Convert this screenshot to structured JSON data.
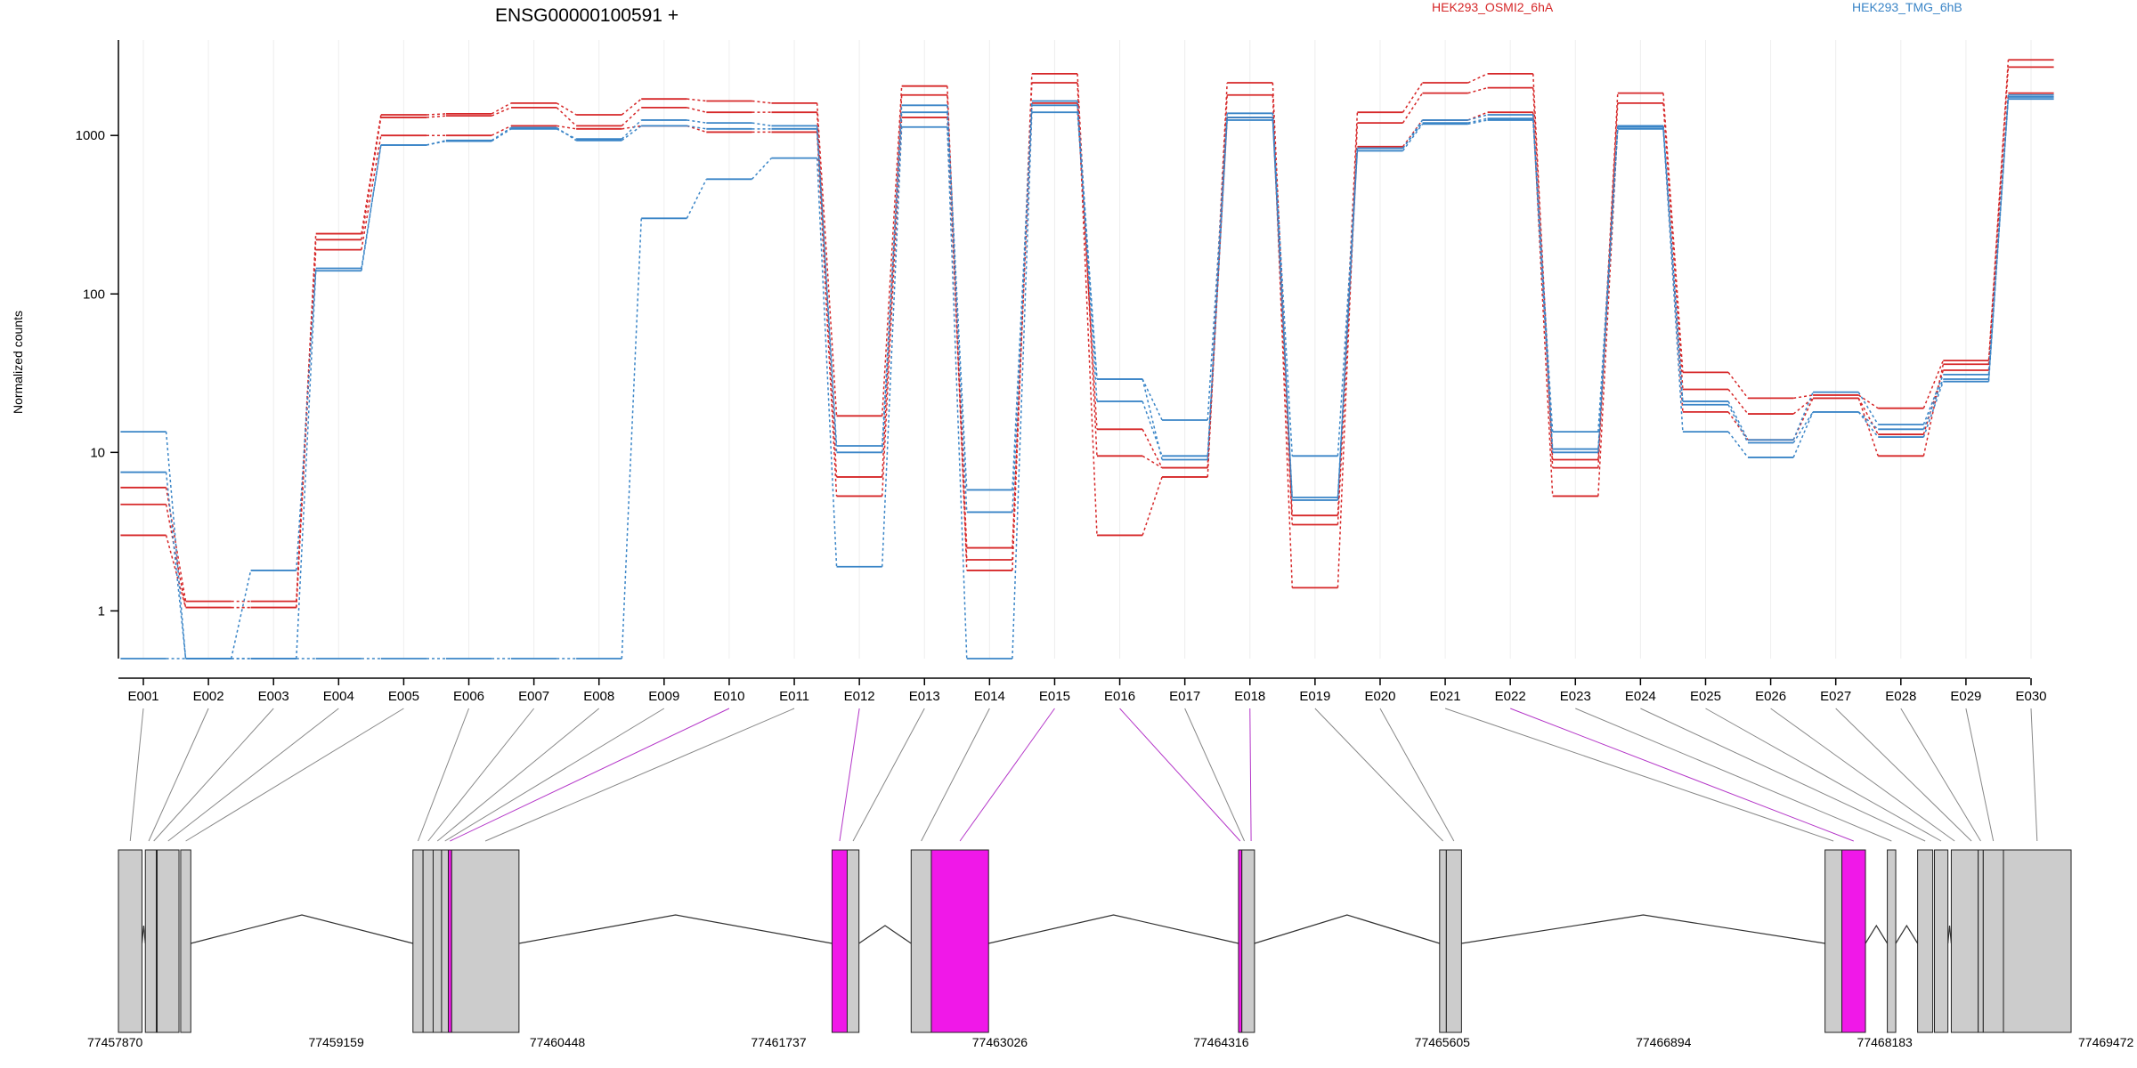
{
  "chart_data": {
    "type": "line",
    "title": "ENSG00000100591 +",
    "ylabel": "Normalized counts",
    "y_scale": "log",
    "ylim": [
      0.5,
      4000
    ],
    "y_ticks": [
      1,
      10,
      100,
      1000
    ],
    "y_tick_labels": [
      "1",
      "10",
      "100",
      "1000"
    ],
    "grid": "vertical, light",
    "categories": [
      "E001",
      "E002",
      "E003",
      "E004",
      "E005",
      "E006",
      "E007",
      "E008",
      "E009",
      "E010",
      "E011",
      "E012",
      "E013",
      "E014",
      "E015",
      "E016",
      "E017",
      "E018",
      "E019",
      "E020",
      "E021",
      "E022",
      "E023",
      "E024",
      "E025",
      "E026",
      "E027",
      "E028",
      "E029",
      "E030"
    ],
    "legend": [
      {
        "name": "HEK293_OSMI2_6hA",
        "color": "#d62728"
      },
      {
        "name": "HEK293_TMG_6hB",
        "color": "#3a85c7"
      }
    ],
    "series": [
      {
        "group": "HEK293_OSMI2_6hA",
        "color": "#d62728",
        "values": [
          6.0,
          1.15,
          1.15,
          240,
          1350,
          1370,
          1600,
          1350,
          1700,
          1650,
          1600,
          17,
          2050,
          2.1,
          2450,
          9.5,
          8,
          2150,
          4,
          1400,
          2150,
          2450,
          9,
          1850,
          32,
          22,
          23,
          19,
          38,
          3000
        ]
      },
      {
        "group": "HEK293_OSMI2_6hA",
        "color": "#d62728",
        "values": [
          4.7,
          1.05,
          1.05,
          220,
          1300,
          1330,
          1500,
          1150,
          1500,
          1400,
          1400,
          7,
          1800,
          1.8,
          2150,
          3,
          7,
          1800,
          1.4,
          1200,
          1850,
          2000,
          8,
          1600,
          25,
          17.5,
          22,
          9.5,
          36,
          2700
        ]
      },
      {
        "group": "HEK293_OSMI2_6hA",
        "color": "#d62728",
        "values": [
          3.0,
          1.05,
          1.05,
          190,
          1000,
          1000,
          1150,
          1100,
          1150,
          1050,
          1050,
          5.3,
          1300,
          2.5,
          1600,
          14,
          8,
          1300,
          3.5,
          850,
          1250,
          1400,
          5.3,
          1150,
          18,
          12,
          22,
          13,
          33,
          1850
        ]
      },
      {
        "group": "HEK293_TMG_6hB",
        "color": "#3a85c7",
        "values": [
          13.5,
          0.5,
          1.8,
          145,
          870,
          920,
          1100,
          950,
          1250,
          1200,
          1150,
          11,
          1550,
          5.8,
          1650,
          29,
          16,
          1380,
          9.5,
          830,
          1250,
          1350,
          13.5,
          1150,
          21,
          12,
          24,
          15,
          31,
          1800
        ]
      },
      {
        "group": "HEK293_TMG_6hB",
        "color": "#3a85c7",
        "values": [
          7.5,
          0.5,
          0.5,
          140,
          870,
          930,
          1120,
          930,
          1150,
          1100,
          1100,
          10,
          1400,
          4.2,
          1550,
          21,
          9.5,
          1300,
          5.2,
          830,
          1200,
          1280,
          10.5,
          1130,
          20,
          11.5,
          18,
          14,
          29,
          1750
        ]
      },
      {
        "group": "HEK293_TMG_6hB",
        "color": "#3a85c7",
        "values": [
          0.5,
          0.5,
          0.5,
          0.5,
          0.5,
          0.5,
          0.5,
          0.5,
          300,
          530,
          720,
          1.9,
          1130,
          0.5,
          1400,
          29,
          9,
          1250,
          5,
          800,
          1180,
          1250,
          10,
          1100,
          13.5,
          9.3,
          18,
          12.5,
          28,
          1700
        ]
      }
    ],
    "gene_model": {
      "coordinate_ticks": [
        "77457870",
        "77459159",
        "77460448",
        "77461737",
        "77463026",
        "77464316",
        "77465605",
        "77466894",
        "77468183",
        "77469472"
      ],
      "range_start": 77457870,
      "range_end": 77469472,
      "highlight_color": "#f018e8",
      "exon_color": "#cccccc",
      "exons": [
        {
          "start": 77457870,
          "end": 77458010,
          "highlight": false
        },
        {
          "start": 77458030,
          "end": 77458095,
          "highlight": false
        },
        {
          "start": 77458100,
          "end": 77458230,
          "highlight": false
        },
        {
          "start": 77458240,
          "end": 77458300,
          "highlight": false
        },
        {
          "start": 77459620,
          "end": 77459680,
          "highlight": false
        },
        {
          "start": 77459680,
          "end": 77459740,
          "highlight": false
        },
        {
          "start": 77459740,
          "end": 77459790,
          "highlight": false
        },
        {
          "start": 77459790,
          "end": 77459830,
          "highlight": false
        },
        {
          "start": 77459830,
          "end": 77459850,
          "highlight": true
        },
        {
          "start": 77459850,
          "end": 77460250,
          "highlight": false
        },
        {
          "start": 77462110,
          "end": 77462200,
          "highlight": true
        },
        {
          "start": 77462200,
          "end": 77462270,
          "highlight": false
        },
        {
          "start": 77462580,
          "end": 77462700,
          "highlight": false
        },
        {
          "start": 77462700,
          "end": 77463040,
          "highlight": true
        },
        {
          "start": 77464525,
          "end": 77464545,
          "highlight": true
        },
        {
          "start": 77464545,
          "end": 77464620,
          "highlight": false
        },
        {
          "start": 77465720,
          "end": 77465760,
          "highlight": false
        },
        {
          "start": 77465760,
          "end": 77465850,
          "highlight": false
        },
        {
          "start": 77468010,
          "end": 77468110,
          "highlight": false
        },
        {
          "start": 77468110,
          "end": 77468250,
          "highlight": true
        },
        {
          "start": 77468380,
          "end": 77468430,
          "highlight": false
        },
        {
          "start": 77468560,
          "end": 77468650,
          "highlight": false
        },
        {
          "start": 77468660,
          "end": 77468740,
          "highlight": false
        },
        {
          "start": 77468760,
          "end": 77468920,
          "highlight": false
        },
        {
          "start": 77468920,
          "end": 77468950,
          "highlight": false
        },
        {
          "start": 77468950,
          "end": 77469070,
          "highlight": false
        },
        {
          "start": 77469070,
          "end": 77469472,
          "highlight": false
        }
      ],
      "bin_links": [
        {
          "bin": "E001",
          "coord": 77457940,
          "highlight": false
        },
        {
          "bin": "E002",
          "coord": 77458050,
          "highlight": false
        },
        {
          "bin": "E003",
          "coord": 77458080,
          "highlight": false
        },
        {
          "bin": "E004",
          "coord": 77458165,
          "highlight": false
        },
        {
          "bin": "E005",
          "coord": 77458270,
          "highlight": false
        },
        {
          "bin": "E006",
          "coord": 77459650,
          "highlight": false
        },
        {
          "bin": "E007",
          "coord": 77459710,
          "highlight": false
        },
        {
          "bin": "E008",
          "coord": 77459765,
          "highlight": false
        },
        {
          "bin": "E009",
          "coord": 77459810,
          "highlight": false
        },
        {
          "bin": "E010",
          "coord": 77459840,
          "highlight": true
        },
        {
          "bin": "E011",
          "coord": 77460050,
          "highlight": false
        },
        {
          "bin": "E012",
          "coord": 77462155,
          "highlight": true
        },
        {
          "bin": "E013",
          "coord": 77462235,
          "highlight": false
        },
        {
          "bin": "E014",
          "coord": 77462640,
          "highlight": false
        },
        {
          "bin": "E015",
          "coord": 77462870,
          "highlight": true
        },
        {
          "bin": "E016",
          "coord": 77464535,
          "highlight": true
        },
        {
          "bin": "E017",
          "coord": 77464560,
          "highlight": false
        },
        {
          "bin": "E018",
          "coord": 77464600,
          "highlight": true
        },
        {
          "bin": "E019",
          "coord": 77465740,
          "highlight": false
        },
        {
          "bin": "E020",
          "coord": 77465805,
          "highlight": false
        },
        {
          "bin": "E021",
          "coord": 77468060,
          "highlight": false
        },
        {
          "bin": "E022",
          "coord": 77468180,
          "highlight": true
        },
        {
          "bin": "E023",
          "coord": 77468405,
          "highlight": false
        },
        {
          "bin": "E024",
          "coord": 77468605,
          "highlight": false
        },
        {
          "bin": "E025",
          "coord": 77468700,
          "highlight": false
        },
        {
          "bin": "E026",
          "coord": 77468780,
          "highlight": false
        },
        {
          "bin": "E027",
          "coord": 77468880,
          "highlight": false
        },
        {
          "bin": "E028",
          "coord": 77468935,
          "highlight": false
        },
        {
          "bin": "E029",
          "coord": 77469010,
          "highlight": false
        },
        {
          "bin": "E030",
          "coord": 77469270,
          "highlight": false
        }
      ]
    }
  }
}
